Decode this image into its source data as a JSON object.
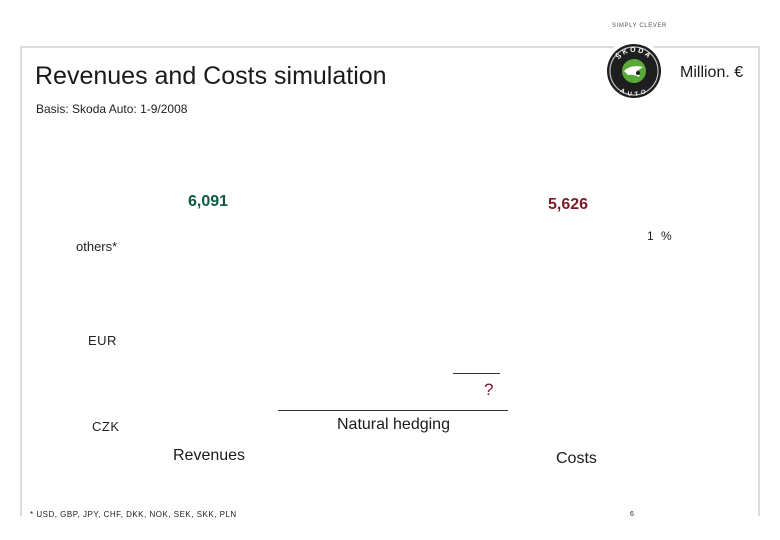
{
  "header": {
    "tagline": "SIMPLY CLEVER",
    "title": "Revenues and Costs simulation",
    "unit": "Million. €",
    "basis": "Basis: Skoda Auto: 1-9/2008",
    "logo_text_top": "ŠKODA",
    "logo_text_bottom": "AUTO"
  },
  "chart_data": {
    "type": "bar",
    "categories": [
      "Revenues",
      "Costs"
    ],
    "totals": [
      "6,091",
      "5,626"
    ],
    "segments": [
      "others*",
      "EUR",
      "CZK"
    ],
    "percent_label": "1 %",
    "question_mark": "?",
    "annotation": "Natural hedging",
    "colors": {
      "revenues_total": "#0e5a3c",
      "costs_total": "#7a1b2a",
      "question": "#7a1b2a"
    }
  },
  "footer": {
    "footnote": "* USD, GBP, JPY, CHF, DKK, NOK, SEK, SKK, PLN",
    "page_number": "6"
  }
}
